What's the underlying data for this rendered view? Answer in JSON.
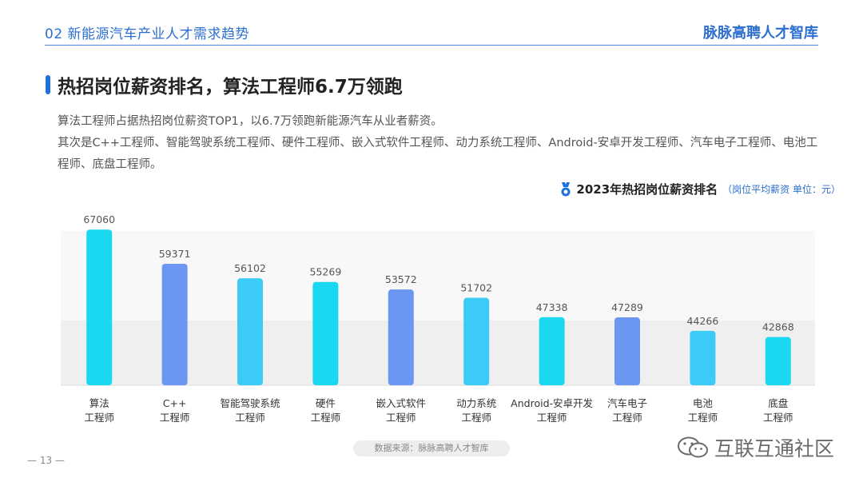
{
  "header": {
    "section": "02  新能源汽车产业人才需求趋势",
    "brand": "脉脉高聘人才智库"
  },
  "title": "热招岗位薪资排名，算法工程师6.7万领跑",
  "description": [
    "算法工程师占据热招岗位薪资TOP1，以6.7万领跑新能源汽车从业者薪资。",
    "其次是C++工程师、智能驾驶系统工程师、硬件工程师、嵌入式软件工程师、动力系统工程师、Android-安卓开发工程师、汽车电子工程师、电池工程师、底盘工程师。"
  ],
  "chart_title": {
    "main": "2023年热招岗位薪资排名",
    "unit": "（岗位平均薪资  单位：元）"
  },
  "chart_data": {
    "type": "bar",
    "title": "2023年热招岗位薪资排名",
    "subtitle": "（岗位平均薪资  单位：元）",
    "categories": [
      [
        "算法",
        "工程师"
      ],
      [
        "C++",
        "工程师"
      ],
      [
        "智能驾驶系统",
        "工程师"
      ],
      [
        "硬件",
        "工程师"
      ],
      [
        "嵌入式软件",
        "工程师"
      ],
      [
        "动力系统",
        "工程师"
      ],
      [
        "Android-安卓开发",
        "工程师"
      ],
      [
        "汽车电子",
        "工程师"
      ],
      [
        "电池",
        "工程师"
      ],
      [
        "底盘",
        "工程师"
      ]
    ],
    "values": [
      67060,
      59371,
      56102,
      55269,
      53572,
      51702,
      47338,
      47289,
      44266,
      42868
    ],
    "colors": [
      "#1ad8f0",
      "#6b96f2",
      "#3ccaf7",
      "#1ad8f0",
      "#6b96f2",
      "#3ccaf7",
      "#1ad8f0",
      "#6b96f2",
      "#3ccaf7",
      "#1ad8f0"
    ],
    "ylim": [
      32000,
      68000
    ],
    "xlabel": "",
    "ylabel": "",
    "grid": false,
    "legend": "none"
  },
  "source": "数据来源：脉脉高聘人才智库",
  "page_number": "— 13 —",
  "watermark": "互联互通社区",
  "colors": {
    "accent": "#1f6fe0",
    "band_light": "#f7f7f7",
    "band_dark": "#efefef"
  }
}
